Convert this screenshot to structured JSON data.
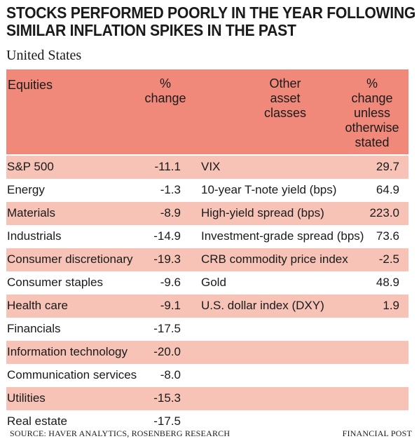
{
  "title_line1": "STOCKS PERFORMED POORLY IN THE YEAR FOLLOWING",
  "title_line2": "SIMILAR INFLATION SPIKES IN THE PAST",
  "subtitle": "United States",
  "colors": {
    "header_bg": "#f0897a",
    "shade_row": "#f7c3b7",
    "plain_row": "#ffffff"
  },
  "headers": {
    "equities": "Equities",
    "pct_change": [
      "%",
      "change"
    ],
    "other_assets": [
      "Other",
      "asset",
      "classes"
    ],
    "pct_change_other": [
      "%",
      "change",
      "unless",
      "otherwise",
      "stated"
    ]
  },
  "rows": [
    {
      "equity": "S&P 500",
      "eq_change": "-11.1",
      "asset": "VIX",
      "asset_change": "29.7"
    },
    {
      "equity": "Energy",
      "eq_change": "-1.3",
      "asset": "10-year T-note yield (bps)",
      "asset_change": "64.9"
    },
    {
      "equity": "Materials",
      "eq_change": "-8.9",
      "asset": "High-yield spread (bps)",
      "asset_change": "223.0"
    },
    {
      "equity": "Industrials",
      "eq_change": "-14.9",
      "asset": "Investment-grade spread (bps)",
      "asset_change": "73.6"
    },
    {
      "equity": "Consumer discretionary",
      "eq_change": "-19.3",
      "asset": "CRB commodity price index",
      "asset_change": "-2.5"
    },
    {
      "equity": "Consumer staples",
      "eq_change": "-9.6",
      "asset": "Gold",
      "asset_change": "48.9"
    },
    {
      "equity": "Health care",
      "eq_change": "-9.1",
      "asset": "U.S. dollar index (DXY)",
      "asset_change": "1.9"
    },
    {
      "equity": "Financials",
      "eq_change": "-17.5",
      "asset": "",
      "asset_change": ""
    },
    {
      "equity": "Information technology",
      "eq_change": "-20.0",
      "asset": "",
      "asset_change": ""
    },
    {
      "equity": "Communication services",
      "eq_change": "-8.0",
      "asset": "",
      "asset_change": ""
    },
    {
      "equity": "Utilities",
      "eq_change": "-15.3",
      "asset": "",
      "asset_change": ""
    },
    {
      "equity": "Real estate",
      "eq_change": "-17.5",
      "asset": "",
      "asset_change": ""
    }
  ],
  "footer": {
    "source": "SOURCE: HAVER ANALYTICS, ROSENBERG RESEARCH",
    "credit": "FINANCIAL POST"
  }
}
